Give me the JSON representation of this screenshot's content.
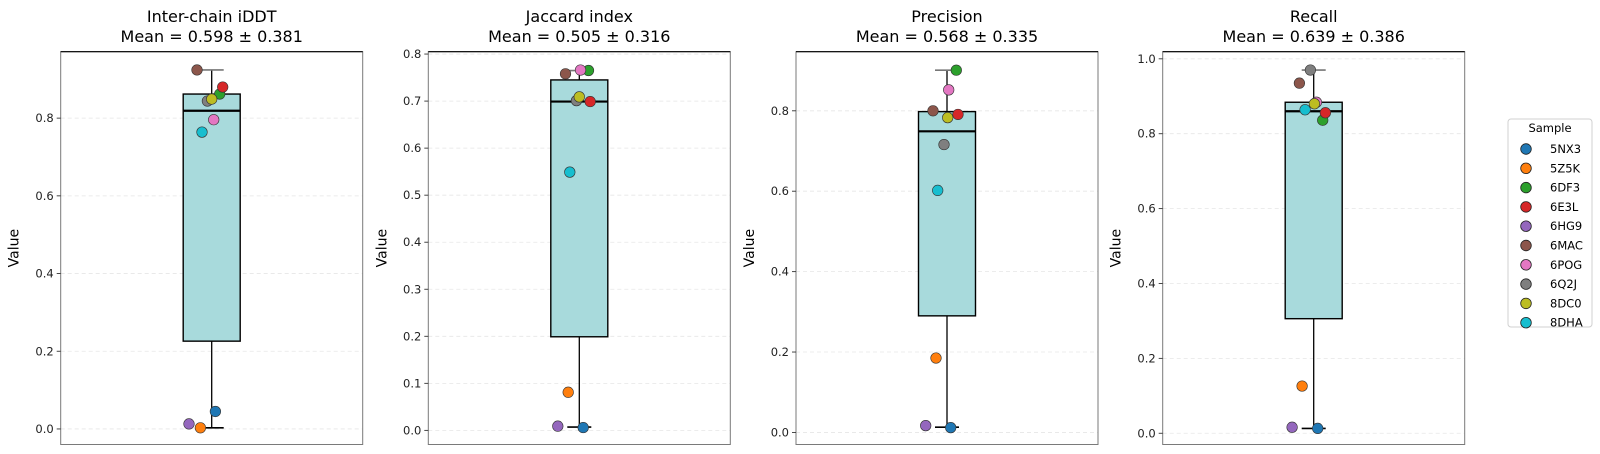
{
  "figure": {
    "legend": {
      "title": "Sample",
      "placement": "right-center",
      "entries": [
        {
          "label": "5NX3",
          "color": "#1f77b4"
        },
        {
          "label": "5Z5K",
          "color": "#ff7f0e"
        },
        {
          "label": "6DF3",
          "color": "#2ca02c"
        },
        {
          "label": "6E3L",
          "color": "#d62728"
        },
        {
          "label": "6HG9",
          "color": "#9467bd"
        },
        {
          "label": "6MAC",
          "color": "#8c564b"
        },
        {
          "label": "6POG",
          "color": "#e377c2"
        },
        {
          "label": "6Q2J",
          "color": "#7f7f7f"
        },
        {
          "label": "8DC0",
          "color": "#bcbd22"
        },
        {
          "label": "8DHA",
          "color": "#17becf"
        }
      ]
    },
    "box_color": "#a8dadc",
    "box_edge_color": "#000000"
  },
  "chart_data": [
    {
      "type": "box",
      "title": "Inter-chain iDDT",
      "subtitle": "Mean = 0.598 ± 0.381",
      "xlabel": "",
      "ylabel": "Value",
      "ylim": [
        -0.04,
        0.971
      ],
      "yticks": [
        0.0,
        0.2,
        0.4,
        0.6,
        0.8
      ],
      "ytick_labels": [
        "0.0",
        "0.2",
        "0.4",
        "0.6",
        "0.8"
      ],
      "grid": "y-dashed",
      "box": {
        "q1": 0.226,
        "median": 0.819,
        "q3": 0.862,
        "whisker_low": 0.003,
        "whisker_high": 0.924
      },
      "points": {
        "5NX3": 0.045,
        "5Z5K": 0.003,
        "6DF3": 0.862,
        "6E3L": 0.88,
        "6HG9": 0.013,
        "6MAC": 0.924,
        "6POG": 0.796,
        "6Q2J": 0.844,
        "8DC0": 0.849,
        "8DHA": 0.764
      }
    },
    {
      "type": "box",
      "title": "Jaccard index",
      "subtitle": "Mean = 0.505 ± 0.316",
      "xlabel": "",
      "ylabel": "Value",
      "ylim": [
        -0.03,
        0.805
      ],
      "yticks": [
        0.0,
        0.1,
        0.2,
        0.3,
        0.4,
        0.5,
        0.6,
        0.7,
        0.8
      ],
      "ytick_labels": [
        "0.0",
        "0.1",
        "0.2",
        "0.3",
        "0.4",
        "0.5",
        "0.6",
        "0.7",
        "0.8"
      ],
      "grid": "y-dashed",
      "box": {
        "q1": 0.199,
        "median": 0.699,
        "q3": 0.745,
        "whisker_low": 0.007,
        "whisker_high": 0.765
      },
      "points": {
        "5NX3": 0.006,
        "5Z5K": 0.081,
        "6DF3": 0.765,
        "6E3L": 0.699,
        "6HG9": 0.009,
        "6MAC": 0.758,
        "6POG": 0.766,
        "6Q2J": 0.701,
        "8DC0": 0.709,
        "8DHA": 0.549
      }
    },
    {
      "type": "box",
      "title": "Precision",
      "subtitle": "Mean = 0.568 ± 0.335",
      "xlabel": "",
      "ylabel": "Value",
      "ylim": [
        -0.03,
        0.947
      ],
      "yticks": [
        0.0,
        0.2,
        0.4,
        0.6,
        0.8
      ],
      "ytick_labels": [
        "0.0",
        "0.2",
        "0.4",
        "0.6",
        "0.8"
      ],
      "grid": "y-dashed",
      "box": {
        "q1": 0.29,
        "median": 0.749,
        "q3": 0.798,
        "whisker_low": 0.013,
        "whisker_high": 0.901
      },
      "points": {
        "5NX3": 0.012,
        "5Z5K": 0.185,
        "6DF3": 0.901,
        "6E3L": 0.791,
        "6HG9": 0.017,
        "6MAC": 0.8,
        "6POG": 0.852,
        "6Q2J": 0.716,
        "8DC0": 0.783,
        "8DHA": 0.602
      }
    },
    {
      "type": "box",
      "title": "Recall",
      "subtitle": "Mean = 0.639 ± 0.386",
      "xlabel": "",
      "ylabel": "Value",
      "ylim": [
        -0.03,
        1.019
      ],
      "yticks": [
        0.0,
        0.2,
        0.4,
        0.6,
        0.8,
        1.0
      ],
      "ytick_labels": [
        "0.0",
        "0.2",
        "0.4",
        "0.6",
        "0.8",
        "1.0"
      ],
      "grid": "y-dashed",
      "box": {
        "q1": 0.306,
        "median": 0.86,
        "q3": 0.884,
        "whisker_low": 0.013,
        "whisker_high": 0.97
      },
      "points": {
        "5NX3": 0.013,
        "5Z5K": 0.126,
        "6DF3": 0.836,
        "6E3L": 0.856,
        "6HG9": 0.016,
        "6MAC": 0.935,
        "6POG": 0.884,
        "6Q2J": 0.97,
        "8DC0": 0.88,
        "8DHA": 0.864
      }
    }
  ]
}
